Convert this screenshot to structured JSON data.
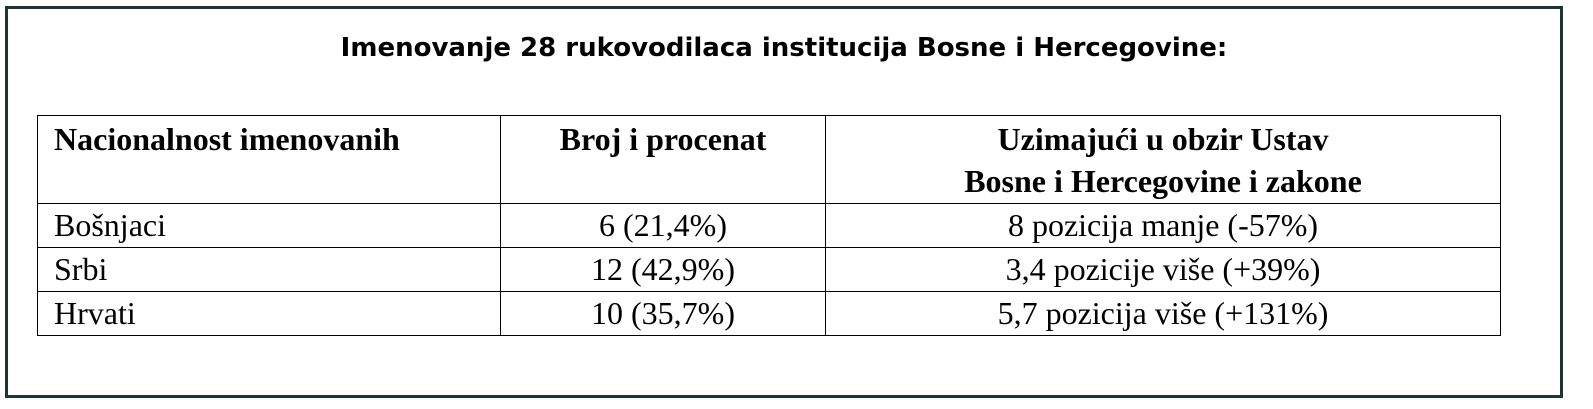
{
  "title": "Imenovanje 28 rukovodilaca institucija Bosne i Hercegovine:",
  "table": {
    "header": [
      "Nacionalnost imenovanih",
      "Broj i procenat",
      "Uzimajući u obzir Ustav\nBosne i Hercegovine i zakone"
    ],
    "rows": [
      [
        "Bošnjaci",
        "6 (21,4%)",
        "8 pozicija manje (-57%)"
      ],
      [
        "Srbi",
        "12 (42,9%)",
        "3,4 pozicije više (+39%)"
      ],
      [
        "Hrvati",
        "10 (35,7%)",
        "5,7 pozicija više (+131%)"
      ]
    ]
  }
}
